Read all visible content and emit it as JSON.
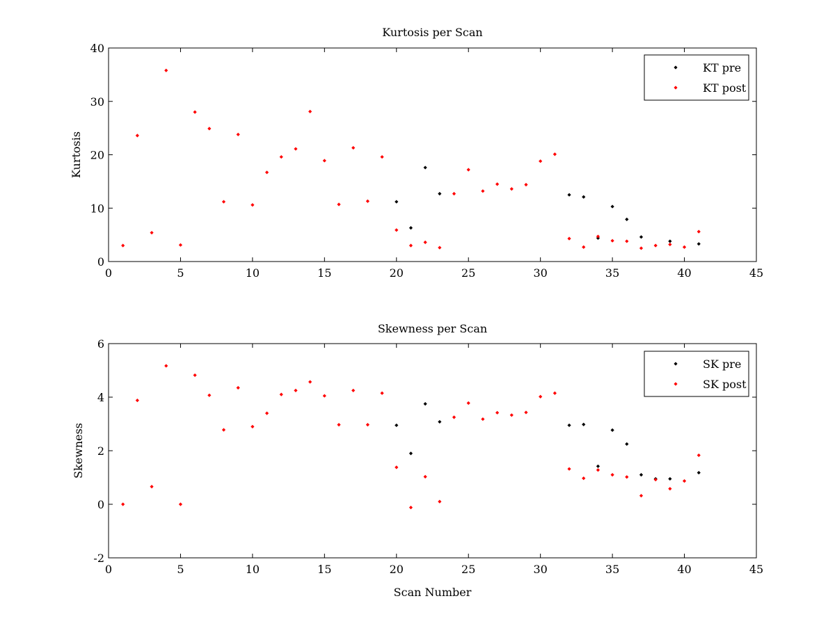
{
  "chart_data": [
    {
      "type": "scatter",
      "title": "Kurtosis per Scan",
      "xlabel": "",
      "ylabel": "Kurtosis",
      "xlim": [
        0,
        45
      ],
      "ylim": [
        0,
        40
      ],
      "xticks": [
        0,
        5,
        10,
        15,
        20,
        25,
        30,
        35,
        40,
        45
      ],
      "yticks": [
        0,
        10,
        20,
        30,
        40
      ],
      "legend_position": "top-right",
      "series": [
        {
          "name": "KT pre",
          "color": "#000000",
          "x": [
            20,
            21,
            22,
            23,
            32,
            33,
            34,
            35,
            36,
            37,
            39,
            41
          ],
          "y": [
            11.2,
            6.3,
            17.6,
            12.7,
            12.5,
            12.1,
            4.4,
            10.3,
            7.9,
            4.6,
            3.8,
            3.3
          ]
        },
        {
          "name": "KT post",
          "color": "#ff0000",
          "x": [
            1,
            2,
            3,
            4,
            5,
            6,
            7,
            8,
            9,
            10,
            11,
            12,
            13,
            14,
            15,
            16,
            17,
            18,
            19,
            20,
            21,
            22,
            23,
            24,
            25,
            26,
            27,
            28,
            29,
            30,
            31,
            32,
            33,
            34,
            35,
            36,
            37,
            38,
            39,
            40,
            41
          ],
          "y": [
            3.0,
            23.6,
            5.4,
            35.8,
            3.1,
            28.0,
            24.9,
            11.2,
            23.8,
            10.6,
            16.7,
            19.6,
            21.1,
            28.1,
            18.9,
            10.7,
            21.3,
            11.3,
            19.6,
            5.9,
            3.0,
            3.6,
            2.6,
            12.7,
            17.2,
            13.2,
            14.5,
            13.6,
            14.4,
            18.8,
            20.1,
            4.3,
            2.7,
            4.7,
            3.9,
            3.8,
            2.5,
            3.0,
            3.2,
            2.7,
            5.6
          ]
        }
      ]
    },
    {
      "type": "scatter",
      "title": "Skewness per Scan",
      "xlabel": "Scan Number",
      "ylabel": "Skewness",
      "xlim": [
        0,
        45
      ],
      "ylim": [
        -2,
        6
      ],
      "xticks": [
        0,
        5,
        10,
        15,
        20,
        25,
        30,
        35,
        40,
        45
      ],
      "yticks": [
        -2,
        0,
        2,
        4,
        6
      ],
      "legend_position": "top-right",
      "series": [
        {
          "name": "SK pre",
          "color": "#000000",
          "x": [
            20,
            21,
            22,
            23,
            32,
            33,
            34,
            35,
            36,
            37,
            38,
            39,
            41
          ],
          "y": [
            2.95,
            1.9,
            3.75,
            3.08,
            2.95,
            2.98,
            1.42,
            2.77,
            2.25,
            1.1,
            0.95,
            0.95,
            1.18
          ]
        },
        {
          "name": "SK post",
          "color": "#ff0000",
          "x": [
            1,
            2,
            3,
            4,
            5,
            6,
            7,
            8,
            9,
            10,
            11,
            12,
            13,
            14,
            15,
            16,
            17,
            18,
            19,
            20,
            21,
            22,
            23,
            24,
            25,
            26,
            27,
            28,
            29,
            30,
            31,
            32,
            33,
            34,
            35,
            36,
            37,
            38,
            39,
            40,
            41
          ],
          "y": [
            0.0,
            3.88,
            0.66,
            5.17,
            0.0,
            4.82,
            4.07,
            2.78,
            4.35,
            2.9,
            3.4,
            4.1,
            4.25,
            4.57,
            4.05,
            2.97,
            4.25,
            2.97,
            4.15,
            1.38,
            -0.12,
            1.03,
            0.1,
            3.25,
            3.78,
            3.18,
            3.42,
            3.33,
            3.43,
            4.02,
            4.15,
            1.32,
            0.97,
            1.28,
            1.1,
            1.02,
            0.32,
            0.92,
            0.58,
            0.87,
            1.83
          ]
        }
      ]
    }
  ]
}
